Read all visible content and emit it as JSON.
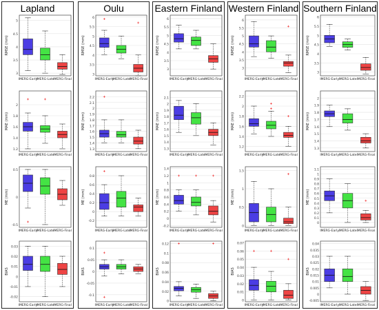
{
  "colors": {
    "early": "#4b3de3",
    "late": "#44e344",
    "final": "#ee4444",
    "outlier": "#ee2222",
    "axis": "#444444"
  },
  "columns": [
    {
      "title": "Lapland"
    },
    {
      "title": "Oulu"
    },
    {
      "title": "Eastern Finland"
    },
    {
      "title": "Western Finland"
    },
    {
      "title": "Southern Finland"
    }
  ],
  "chart_data": {
    "type": "box",
    "categories": [
      "IMERG-Early",
      "IMERG-Late",
      "IMERG-Final"
    ],
    "metrics": [
      "RMSE",
      "MAE",
      "ME",
      "BIAS"
    ],
    "ylabels": [
      "RMSE (mm)",
      "MAE (mm)",
      "ME (mm)",
      "BIAS"
    ],
    "panels": [
      [
        {
          "ylim": [
            2.9,
            5.2
          ],
          "ticks": [
            3,
            3.5,
            4,
            4.5,
            5
          ],
          "boxes": [
            [
              3.1,
              3.7,
              3.9,
              4.3,
              5.1
            ],
            [
              3.0,
              3.5,
              3.7,
              3.95,
              4.6
            ],
            [
              2.95,
              3.15,
              3.25,
              3.4,
              3.7
            ]
          ],
          "outliers": [
            [],
            [],
            []
          ]
        },
        {
          "ylim": [
            1.15,
            2.25
          ],
          "ticks": [
            1.2,
            1.4,
            1.6,
            1.8,
            2
          ],
          "boxes": [
            [
              1.2,
              1.52,
              1.6,
              1.68,
              1.85
            ],
            [
              1.3,
              1.5,
              1.56,
              1.62,
              1.8
            ],
            [
              1.2,
              1.4,
              1.46,
              1.52,
              1.65
            ]
          ],
          "outliers": [
            [
              2.1
            ],
            [
              2.1
            ],
            []
          ]
        },
        {
          "ylim": [
            -0.55,
            0.55
          ],
          "ticks": [
            -0.5,
            0,
            0.5
          ],
          "boxes": [
            [
              -0.2,
              0.1,
              0.25,
              0.4,
              0.5
            ],
            [
              -0.5,
              0.05,
              0.2,
              0.35,
              0.5
            ],
            [
              -0.15,
              -0.05,
              0.05,
              0.15,
              0.3
            ]
          ],
          "outliers": [
            [
              -0.45
            ],
            [],
            []
          ]
        },
        {
          "ylim": [
            -0.025,
            0.035
          ],
          "ticks": [
            -0.02,
            -0.01,
            0,
            0.01,
            0.02,
            0.03
          ],
          "boxes": [
            [
              -0.01,
              0.006,
              0.012,
              0.02,
              0.03
            ],
            [
              -0.02,
              0.005,
              0.012,
              0.02,
              0.03
            ],
            [
              -0.01,
              0.002,
              0.007,
              0.013,
              0.02
            ]
          ],
          "outliers": [
            [],
            [],
            []
          ]
        }
      ],
      [
        {
          "ylim": [
            2.9,
            6.1
          ],
          "ticks": [
            3,
            3.5,
            4,
            4.5,
            5,
            5.5,
            6
          ],
          "boxes": [
            [
              4.0,
              4.4,
              4.6,
              4.9,
              5.3
            ],
            [
              3.8,
              4.1,
              4.3,
              4.5,
              5.0
            ],
            [
              2.9,
              3.1,
              3.3,
              3.5,
              4.0
            ]
          ],
          "outliers": [
            [
              5.9
            ],
            [],
            [
              5.7
            ]
          ]
        },
        {
          "ylim": [
            1.25,
            2.3
          ],
          "ticks": [
            1.3,
            1.4,
            1.5,
            1.6,
            1.7,
            1.8,
            1.9,
            2,
            2.1,
            2.2
          ],
          "boxes": [
            [
              1.4,
              1.5,
              1.56,
              1.62,
              1.8
            ],
            [
              1.4,
              1.5,
              1.54,
              1.6,
              1.8
            ],
            [
              1.3,
              1.38,
              1.43,
              1.5,
              1.62
            ]
          ],
          "outliers": [
            [
              2.2
            ],
            [],
            []
          ]
        },
        {
          "ylim": [
            -0.35,
            1.0
          ],
          "ticks": [
            -0.2,
            0,
            0.2,
            0.4,
            0.6,
            0.8
          ],
          "boxes": [
            [
              -0.1,
              0.05,
              0.2,
              0.4,
              0.6
            ],
            [
              -0.1,
              0.1,
              0.3,
              0.45,
              0.8
            ],
            [
              -0.1,
              0.0,
              0.1,
              0.15,
              0.3
            ]
          ],
          "outliers": [
            [
              0.9
            ],
            [],
            []
          ]
        },
        {
          "ylim": [
            -0.13,
            0.13
          ],
          "ticks": [
            -0.1,
            -0.05,
            0,
            0.05,
            0.1
          ],
          "boxes": [
            [
              -0.02,
              0.01,
              0.02,
              0.03,
              0.05
            ],
            [
              -0.01,
              0.01,
              0.02,
              0.03,
              0.05
            ],
            [
              -0.01,
              0.0,
              0.01,
              0.02,
              0.03
            ]
          ],
          "outliers": [
            [
              -0.11,
              0.08
            ],
            [],
            []
          ]
        }
      ],
      [
        {
          "ylim": [
            2.6,
            6.2
          ],
          "ticks": [
            3,
            3.5,
            4,
            4.5,
            5,
            5.5,
            6
          ],
          "boxes": [
            [
              4.2,
              4.6,
              4.8,
              5.1,
              5.6
            ],
            [
              4.2,
              4.4,
              4.7,
              4.9,
              5.3
            ],
            [
              3.0,
              3.4,
              3.6,
              3.8,
              4.5
            ]
          ],
          "outliers": [
            [],
            [],
            []
          ]
        },
        {
          "ylim": [
            1.25,
            2.2
          ],
          "ticks": [
            1.3,
            1.4,
            1.5,
            1.6,
            1.7,
            1.8,
            1.9,
            2,
            2.1
          ],
          "boxes": [
            [
              1.55,
              1.75,
              1.82,
              1.96,
              2.05
            ],
            [
              1.5,
              1.68,
              1.78,
              1.86,
              2.0
            ],
            [
              1.35,
              1.5,
              1.55,
              1.6,
              1.7
            ]
          ],
          "outliers": [
            [],
            [],
            []
          ]
        },
        {
          "ylim": [
            -0.25,
            1.45
          ],
          "ticks": [
            -0.2,
            0,
            0.2,
            0.4,
            0.6,
            0.8,
            1,
            1.2,
            1.4
          ],
          "boxes": [
            [
              0.2,
              0.4,
              0.5,
              0.65,
              0.8
            ],
            [
              0.1,
              0.35,
              0.45,
              0.6,
              0.8
            ],
            [
              -0.1,
              0.1,
              0.2,
              0.35,
              0.5
            ]
          ],
          "outliers": [
            [
              1.2
            ],
            [
              1.2
            ],
            [
              1.2
            ]
          ]
        },
        {
          "ylim": [
            -0.002,
            0.125
          ],
          "ticks": [
            0,
            0.02,
            0.04,
            0.06,
            0.08,
            0.1,
            0.12
          ],
          "boxes": [
            [
              0.01,
              0.021,
              0.026,
              0.03,
              0.04
            ],
            [
              0.005,
              0.018,
              0.023,
              0.028,
              0.035
            ],
            [
              0.0,
              0.005,
              0.01,
              0.015,
              0.02
            ]
          ],
          "outliers": [
            [
              0.12
            ],
            [],
            [
              0.12
            ]
          ]
        }
      ],
      [
        {
          "ylim": [
            2.5,
            6.3
          ],
          "ticks": [
            3,
            3.5,
            4,
            4.5,
            5,
            5.5,
            6
          ],
          "boxes": [
            [
              3.7,
              4.3,
              4.5,
              5.0,
              5.9
            ],
            [
              3.6,
              4.0,
              4.3,
              4.7,
              5.0
            ],
            [
              2.7,
              3.1,
              3.3,
              3.4,
              3.8
            ]
          ],
          "outliers": [
            [],
            [],
            [
              5.6
            ]
          ]
        },
        {
          "ylim": [
            1.1,
            2.3
          ],
          "ticks": [
            1.2,
            1.4,
            1.6,
            1.8,
            2,
            2.2
          ],
          "boxes": [
            [
              1.45,
              1.6,
              1.65,
              1.75,
              2.0
            ],
            [
              1.4,
              1.55,
              1.62,
              1.7,
              1.9
            ],
            [
              1.2,
              1.38,
              1.42,
              1.48,
              1.6
            ]
          ],
          "outliers": [
            [],
            [
              1.95,
              2.05
            ],
            [
              1.8
            ]
          ]
        },
        {
          "ylim": [
            -0.05,
            1.6
          ],
          "ticks": [
            0,
            0.5,
            1,
            1.5
          ],
          "boxes": [
            [
              0.0,
              0.1,
              0.35,
              0.6,
              1.2
            ],
            [
              0.0,
              0.1,
              0.3,
              0.5,
              1.0
            ],
            [
              0.0,
              0.05,
              0.1,
              0.2,
              0.5
            ]
          ],
          "outliers": [
            [],
            [],
            [
              1.4
            ]
          ]
        },
        {
          "ylim": [
            -0.002,
            0.072
          ],
          "ticks": [
            0,
            0.01,
            0.02,
            0.03,
            0.04,
            0.05,
            0.06,
            0.07
          ],
          "boxes": [
            [
              0.0,
              0.012,
              0.018,
              0.025,
              0.04
            ],
            [
              0.0,
              0.01,
              0.017,
              0.023,
              0.035
            ],
            [
              0.0,
              0.002,
              0.006,
              0.012,
              0.02
            ]
          ],
          "outliers": [
            [
              0.06
            ],
            [
              0.06
            ],
            [
              0.05
            ]
          ]
        }
      ],
      [
        {
          "ylim": [
            2.8,
            6.1
          ],
          "ticks": [
            3,
            3.5,
            4,
            4.5,
            5,
            5.5,
            6
          ],
          "boxes": [
            [
              4.4,
              4.6,
              4.8,
              5.0,
              5.6
            ],
            [
              4.2,
              4.35,
              4.5,
              4.65,
              4.8
            ],
            [
              2.9,
              3.1,
              3.25,
              3.45,
              3.8
            ]
          ],
          "outliers": [
            [],
            [],
            []
          ]
        },
        {
          "ylim": [
            1.25,
            2.1
          ],
          "ticks": [
            1.3,
            1.4,
            1.5,
            1.6,
            1.7,
            1.8,
            1.9,
            2
          ],
          "boxes": [
            [
              1.6,
              1.74,
              1.78,
              1.82,
              1.9
            ],
            [
              1.55,
              1.65,
              1.7,
              1.78,
              1.85
            ],
            [
              1.3,
              1.37,
              1.4,
              1.45,
              1.5
            ]
          ],
          "outliers": [
            [],
            [],
            []
          ]
        },
        {
          "ylim": [
            -0.1,
            1.15
          ],
          "ticks": [
            0,
            0.1,
            0.2,
            0.3,
            0.4,
            0.5,
            0.6,
            0.7,
            0.8,
            0.9,
            1,
            1.1
          ],
          "boxes": [
            [
              0.2,
              0.45,
              0.55,
              0.65,
              0.9
            ],
            [
              0.0,
              0.3,
              0.45,
              0.6,
              0.8
            ],
            [
              0.0,
              0.05,
              0.1,
              0.18,
              0.25
            ]
          ],
          "outliers": [
            [],
            [],
            [
              0.45
            ]
          ]
        },
        {
          "ylim": [
            -0.006,
            0.042
          ],
          "ticks": [
            -0.005,
            0,
            0.005,
            0.01,
            0.015,
            0.02,
            0.025,
            0.03,
            0.035,
            0.04
          ],
          "boxes": [
            [
              0.005,
              0.01,
              0.015,
              0.02,
              0.03
            ],
            [
              0.0,
              0.01,
              0.014,
              0.02,
              0.03
            ],
            [
              -0.005,
              0.0,
              0.003,
              0.006,
              0.01
            ]
          ],
          "outliers": [
            [],
            [],
            []
          ]
        }
      ]
    ]
  }
}
